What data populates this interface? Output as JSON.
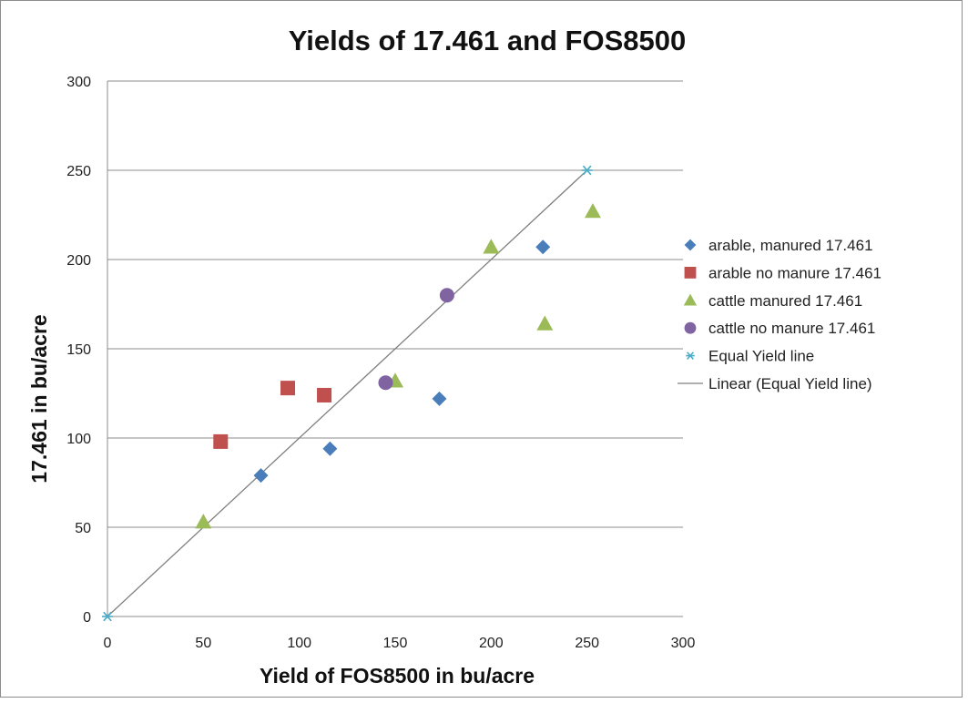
{
  "chart_data": {
    "type": "scatter",
    "title": "Yields of  17.461 and FOS8500",
    "xlabel": "Yield of FOS8500 in bu/acre",
    "ylabel": "17.461 in bu/acre",
    "xlim": [
      0,
      300
    ],
    "ylim": [
      0,
      300
    ],
    "x_ticks": [
      0,
      50,
      100,
      150,
      200,
      250,
      300
    ],
    "y_ticks": [
      0,
      50,
      100,
      150,
      200,
      250,
      300
    ],
    "grid": "horizontal",
    "legend_position": "right",
    "series": [
      {
        "name": "arable, manured 17.461",
        "marker": "diamond",
        "color": "#4a7ebb",
        "points": [
          [
            80,
            79
          ],
          [
            116,
            94
          ],
          [
            173,
            122
          ],
          [
            227,
            207
          ]
        ]
      },
      {
        "name": "arable no manure 17.461",
        "marker": "square",
        "color": "#c0504d",
        "points": [
          [
            59,
            98
          ],
          [
            94,
            128
          ],
          [
            113,
            124
          ]
        ]
      },
      {
        "name": "cattle manured 17.461",
        "marker": "triangle",
        "color": "#9bbb59",
        "points": [
          [
            50,
            53
          ],
          [
            150,
            132
          ],
          [
            200,
            207
          ],
          [
            228,
            164
          ],
          [
            253,
            227
          ]
        ]
      },
      {
        "name": "cattle no manure 17.461",
        "marker": "circle",
        "color": "#8064a2",
        "points": [
          [
            145,
            131
          ],
          [
            177,
            180
          ]
        ]
      },
      {
        "name": "Equal Yield line",
        "marker": "asterisk",
        "color": "#4bacc6",
        "points": [
          [
            0,
            0
          ],
          [
            250,
            250
          ]
        ]
      },
      {
        "name": "Linear (Equal Yield line)",
        "marker": "line",
        "color": "#7f7f7f",
        "from": [
          0,
          0
        ],
        "to": [
          250,
          250
        ]
      }
    ]
  }
}
